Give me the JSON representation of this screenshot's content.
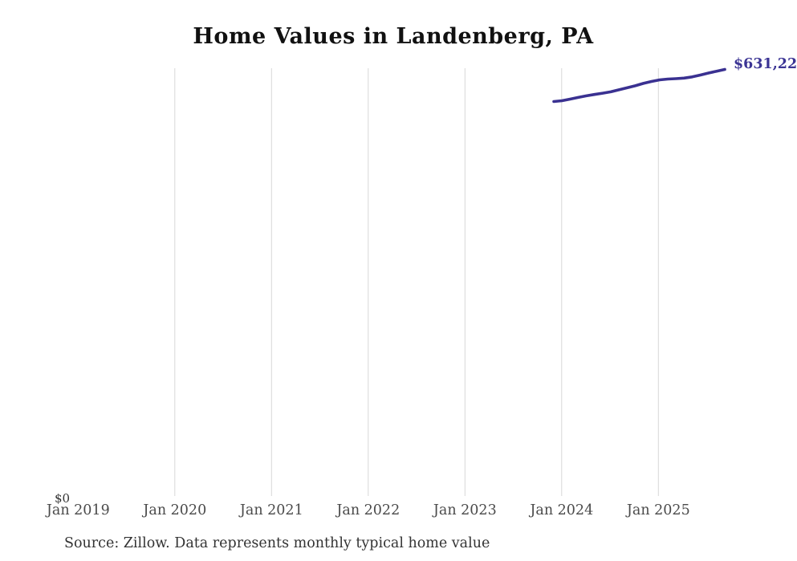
{
  "title": {
    "text": "Home Values in Landenberg, PA",
    "color": "#111111"
  },
  "colors": {
    "background": "#ffffff",
    "line": "#3a3191",
    "grid": "#d7d7d7",
    "axis_label": "#4a4a4a",
    "end_label": "#3b3494",
    "source": "#333333"
  },
  "labels": {
    "end_value": "$631,22",
    "y_zero": "$0"
  },
  "source": {
    "text": "Source: Zillow. Data represents monthly typical home value"
  },
  "chart_data": {
    "type": "line",
    "title": "Home Values in Landenberg, PA",
    "x_tick_labels": [
      "Jan 2019",
      "Jan 2020",
      "Jan 2021",
      "Jan 2022",
      "Jan 2023",
      "Jan 2024",
      "Jan 2025"
    ],
    "x": [
      "Dec 2023",
      "Jan 2024",
      "Feb 2024",
      "Mar 2024",
      "Apr 2024",
      "May 2024",
      "Jun 2024",
      "Jul 2024",
      "Aug 2024",
      "Sep 2024",
      "Oct 2024",
      "Nov 2024",
      "Dec 2024",
      "Jan 2025",
      "Feb 2025",
      "Mar 2025",
      "Apr 2025",
      "May 2025",
      "Jun 2025",
      "Jul 2025",
      "Aug 2025",
      "Sep 2025"
    ],
    "values": [
      583700,
      584900,
      587300,
      589700,
      592100,
      594200,
      596000,
      598100,
      601000,
      604000,
      607000,
      610500,
      613400,
      615800,
      616900,
      617500,
      618400,
      620200,
      622900,
      625900,
      628600,
      631200
    ],
    "series_name": "Monthly typical home value",
    "ylabel": "",
    "ylim": [
      0,
      660000
    ],
    "y_zero_label": "$0",
    "grid": "vertical-only",
    "legend": "none",
    "end_point_label": "$631,22",
    "source_note": "Source: Zillow. Data represents monthly typical home value"
  }
}
